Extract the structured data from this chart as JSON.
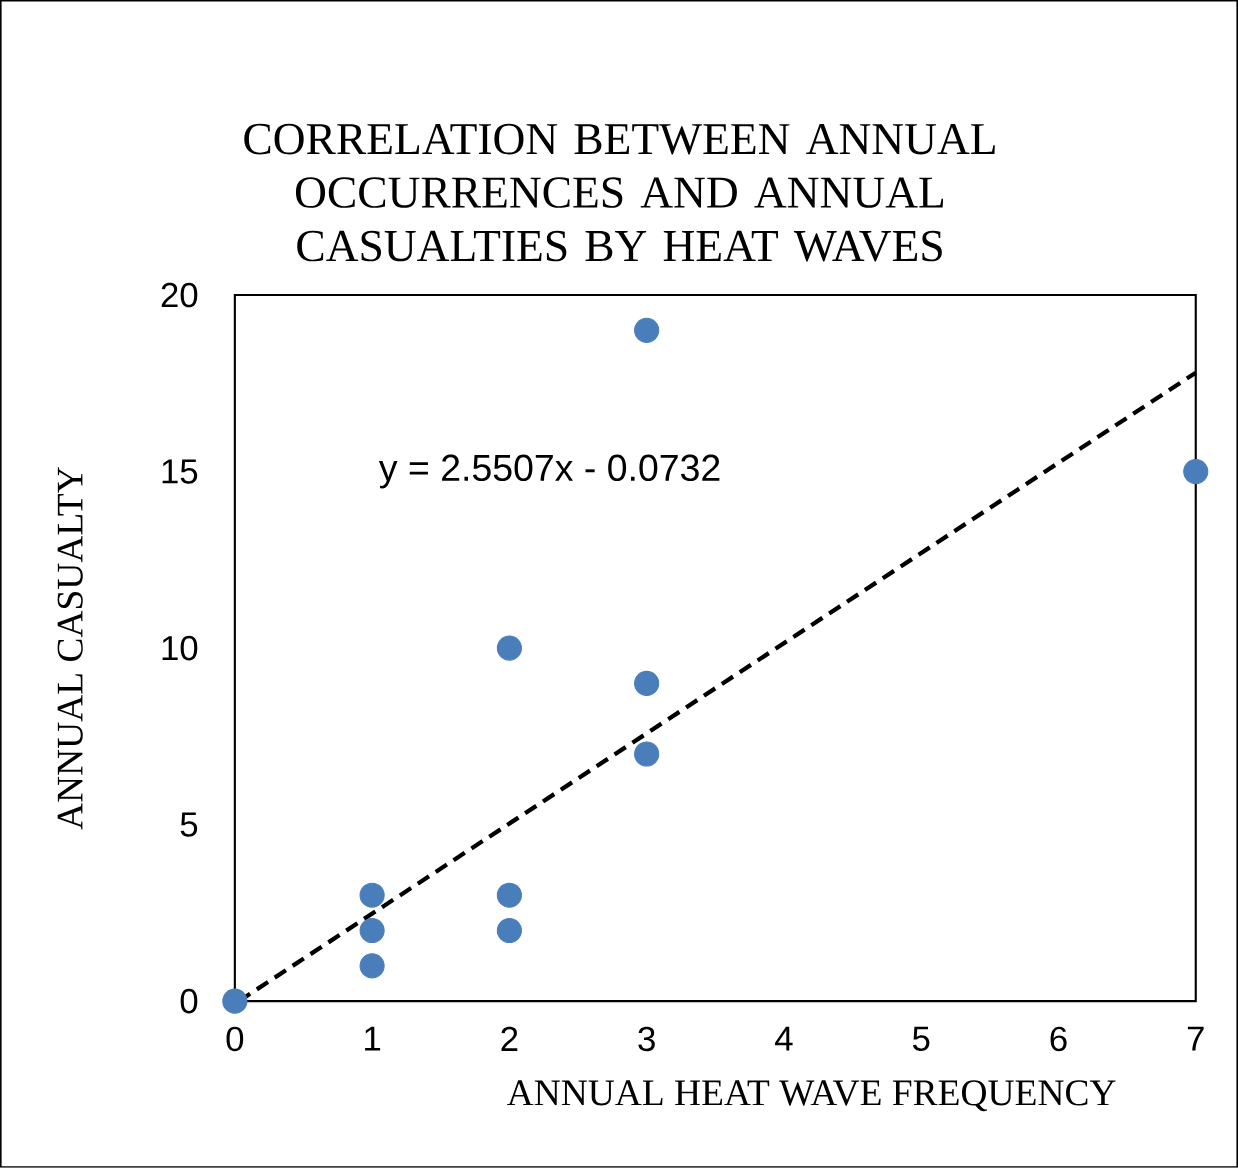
{
  "chart_data": {
    "type": "scatter",
    "title": "CORRELATION BETWEEN ANNUAL OCCURRENCES AND ANNUAL CASUALTIES BY HEAT WAVES",
    "xlabel": "ANNUAL HEAT WAVE FREQUENCY",
    "ylabel": "ANNUAL CASUALTY",
    "xlim": [
      0,
      7
    ],
    "xticks": [
      0,
      1,
      2,
      3,
      4,
      5,
      6,
      7
    ],
    "ylim": [
      0,
      20
    ],
    "yticks": [
      0,
      5,
      10,
      15,
      20
    ],
    "grid": false,
    "annotations": [
      "y = 2.5507x - 0.0732"
    ],
    "series": [
      {
        "color": "#4a7ebb",
        "marker": "circle",
        "x": [
          0,
          1,
          1,
          1,
          2,
          2,
          2,
          3,
          3,
          3,
          7
        ],
        "values": [
          0,
          3,
          2,
          1,
          10,
          3,
          2,
          19,
          9,
          7,
          15
        ]
      },
      {
        "type": "line",
        "color": "#000000",
        "line_style": "dashed",
        "marker": "none",
        "x": [
          0.03,
          7
        ],
        "values": [
          0,
          17.8
        ]
      }
    ]
  }
}
